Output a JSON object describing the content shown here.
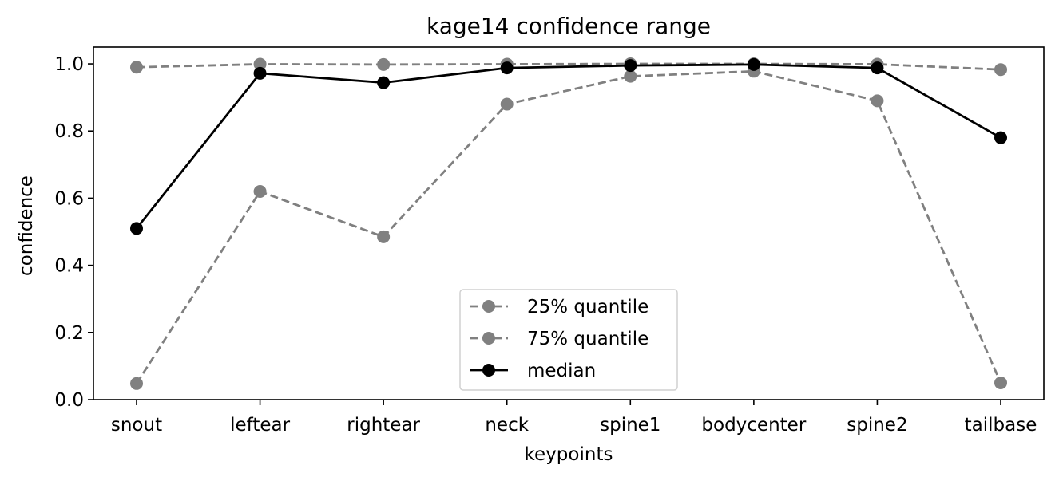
{
  "chart_data": {
    "type": "line",
    "title": "kage14 confidence range",
    "xlabel": "keypoints",
    "ylabel": "confidence",
    "categories": [
      "snout",
      "leftear",
      "rightear",
      "neck",
      "spine1",
      "bodycenter",
      "spine2",
      "tailbase"
    ],
    "ylim": [
      0,
      1.05
    ],
    "yticks": [
      "0.0",
      "0.2",
      "0.4",
      "0.6",
      "0.8",
      "1.0"
    ],
    "grid": false,
    "legend_position": "lower center",
    "series": [
      {
        "name": "25% quantile",
        "color": "#808080",
        "line_style": "dashed",
        "values": [
          0.048,
          0.62,
          0.485,
          0.88,
          0.963,
          0.978,
          0.89,
          0.05
        ]
      },
      {
        "name": "75% quantile",
        "color": "#808080",
        "line_style": "dashed",
        "values": [
          0.99,
          0.999,
          0.998,
          0.999,
          1.0,
          1.0,
          0.999,
          0.983
        ]
      },
      {
        "name": "median",
        "color": "#000000",
        "line_style": "solid",
        "values": [
          0.51,
          0.972,
          0.944,
          0.988,
          0.995,
          0.998,
          0.988,
          0.78
        ]
      }
    ]
  }
}
